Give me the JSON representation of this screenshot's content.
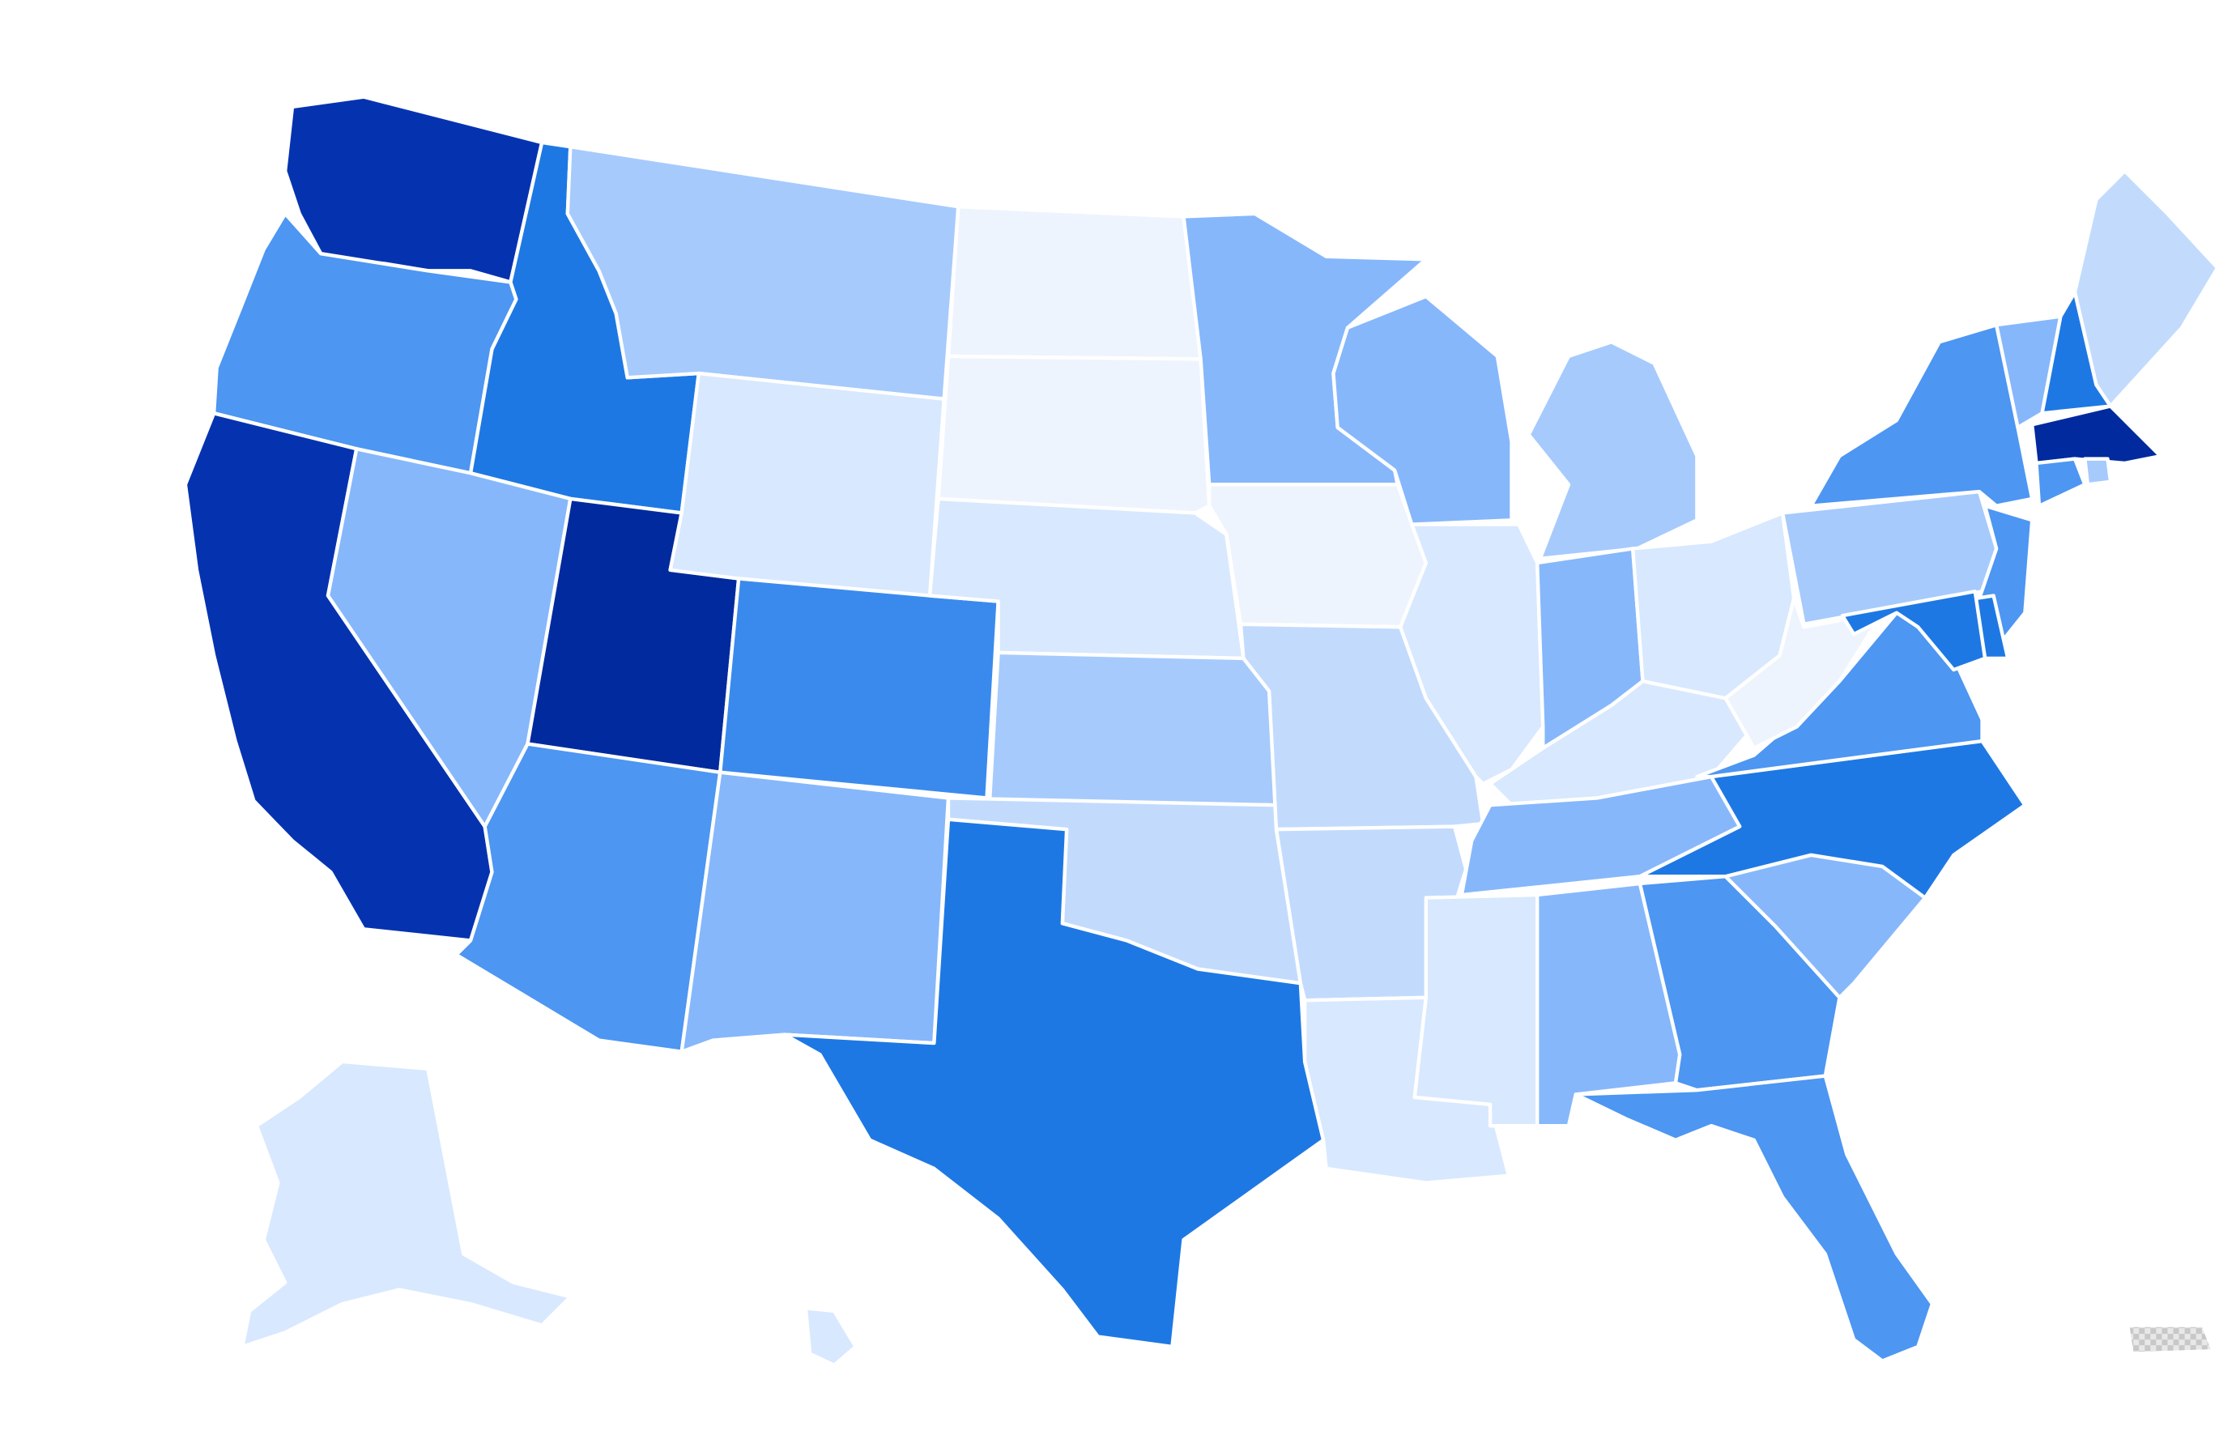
{
  "map": {
    "type": "choropleth",
    "region": "United States",
    "legend": "none",
    "palette": {
      "darkest": "#002a9e",
      "dark": "#0533b0",
      "strong": "#1e78e4",
      "medium_strong": "#3a8aee",
      "medium": "#4d96f2",
      "medium_light": "#86b7fb",
      "light": "#a6cafc",
      "lighter": "#c2dbfd",
      "pale": "#d8e8fe",
      "palest": "#eef4fe",
      "no_data": "#d9d9d9"
    },
    "states": [
      {
        "id": "WA",
        "shade": "dark"
      },
      {
        "id": "OR",
        "shade": "medium"
      },
      {
        "id": "CA",
        "shade": "dark"
      },
      {
        "id": "ID",
        "shade": "strong"
      },
      {
        "id": "NV",
        "shade": "medium_light"
      },
      {
        "id": "UT",
        "shade": "darkest"
      },
      {
        "id": "AZ",
        "shade": "medium"
      },
      {
        "id": "MT",
        "shade": "light"
      },
      {
        "id": "WY",
        "shade": "pale"
      },
      {
        "id": "CO",
        "shade": "medium_strong"
      },
      {
        "id": "NM",
        "shade": "medium_light"
      },
      {
        "id": "ND",
        "shade": "palest"
      },
      {
        "id": "SD",
        "shade": "palest"
      },
      {
        "id": "NE",
        "shade": "pale"
      },
      {
        "id": "KS",
        "shade": "light"
      },
      {
        "id": "OK",
        "shade": "lighter"
      },
      {
        "id": "TX",
        "shade": "strong"
      },
      {
        "id": "MN",
        "shade": "medium_light"
      },
      {
        "id": "IA",
        "shade": "palest"
      },
      {
        "id": "MO",
        "shade": "lighter"
      },
      {
        "id": "AR",
        "shade": "lighter"
      },
      {
        "id": "LA",
        "shade": "pale"
      },
      {
        "id": "WI",
        "shade": "medium_light"
      },
      {
        "id": "IL",
        "shade": "pale"
      },
      {
        "id": "MI",
        "shade": "light"
      },
      {
        "id": "IN",
        "shade": "medium_light"
      },
      {
        "id": "OH",
        "shade": "pale"
      },
      {
        "id": "KY",
        "shade": "pale"
      },
      {
        "id": "TN",
        "shade": "medium_light"
      },
      {
        "id": "MS",
        "shade": "pale"
      },
      {
        "id": "AL",
        "shade": "medium_light"
      },
      {
        "id": "GA",
        "shade": "medium"
      },
      {
        "id": "FL",
        "shade": "medium"
      },
      {
        "id": "SC",
        "shade": "medium_light"
      },
      {
        "id": "NC",
        "shade": "strong"
      },
      {
        "id": "VA",
        "shade": "medium"
      },
      {
        "id": "WV",
        "shade": "palest"
      },
      {
        "id": "PA",
        "shade": "light"
      },
      {
        "id": "NY",
        "shade": "medium"
      },
      {
        "id": "VT",
        "shade": "medium_light"
      },
      {
        "id": "NH",
        "shade": "strong"
      },
      {
        "id": "ME",
        "shade": "lighter"
      },
      {
        "id": "MA",
        "shade": "darkest"
      },
      {
        "id": "CT",
        "shade": "medium"
      },
      {
        "id": "RI",
        "shade": "light"
      },
      {
        "id": "NJ",
        "shade": "medium"
      },
      {
        "id": "DE",
        "shade": "strong"
      },
      {
        "id": "MD",
        "shade": "strong"
      },
      {
        "id": "AK",
        "shade": "pale"
      },
      {
        "id": "HI",
        "shade": "pale"
      },
      {
        "id": "PR",
        "shade": "no_data"
      }
    ]
  }
}
